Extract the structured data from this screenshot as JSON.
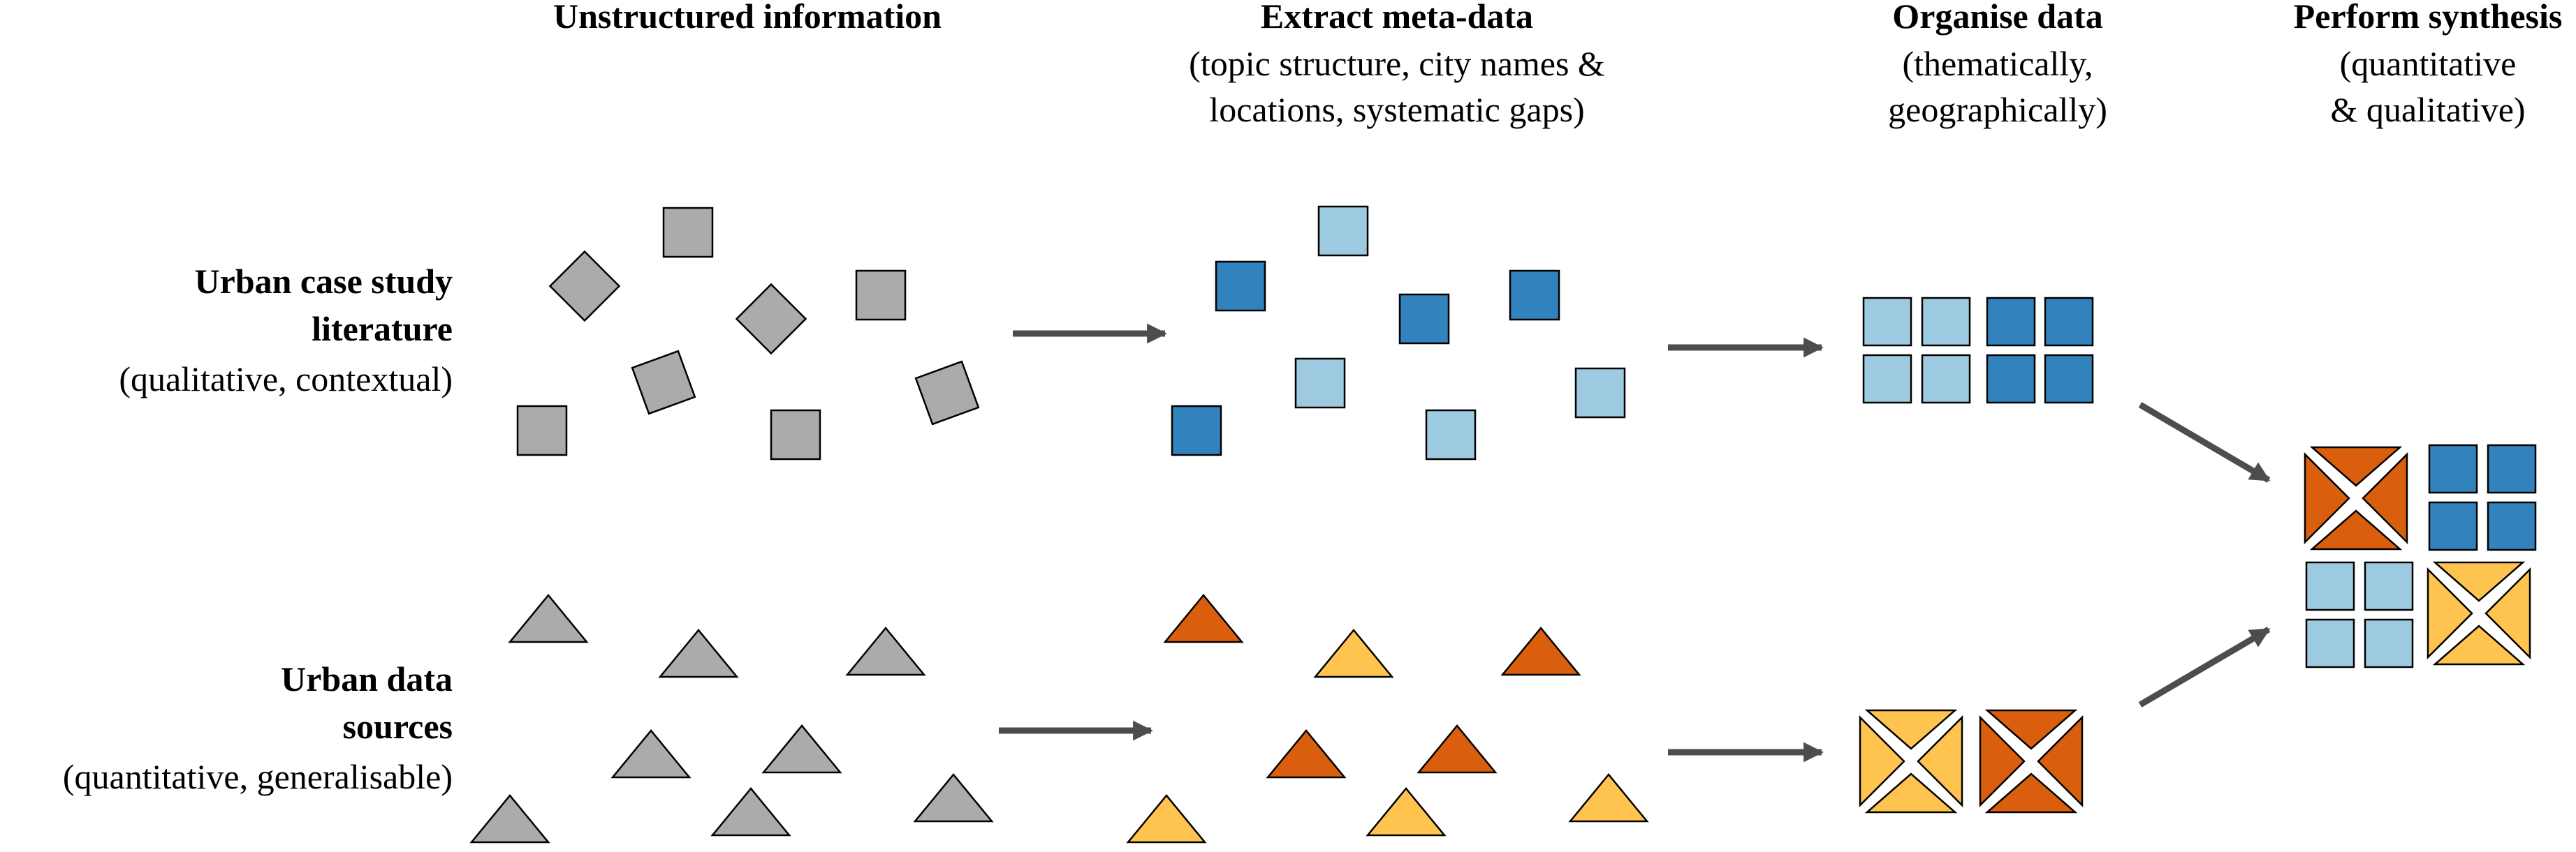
{
  "columns": [
    {
      "title": "Unstructured information",
      "subtitle": []
    },
    {
      "title": "Extract meta-data",
      "subtitle": [
        "(topic structure, city names &",
        "locations, systematic gaps)"
      ]
    },
    {
      "title": "Organise data",
      "subtitle": [
        "(thematically,",
        "geographically)"
      ]
    },
    {
      "title": "Perform synthesis",
      "subtitle": [
        "(quantitative",
        "& qualitative)"
      ]
    }
  ],
  "rows": [
    {
      "title": [
        "Urban case study",
        "literature"
      ],
      "subtitle": "(qualitative, contextual)"
    },
    {
      "title": [
        "Urban data",
        "sources"
      ],
      "subtitle": "(quantitative, generalisable)"
    }
  ],
  "colors": {
    "gray": "#ababab",
    "light_blue": "#9ecae1",
    "dark_blue": "#3182bd",
    "dark_orange": "#d95f0e",
    "light_orange": "#fec44f",
    "arrow": "#4d4d4d",
    "outline": "#000000"
  }
}
